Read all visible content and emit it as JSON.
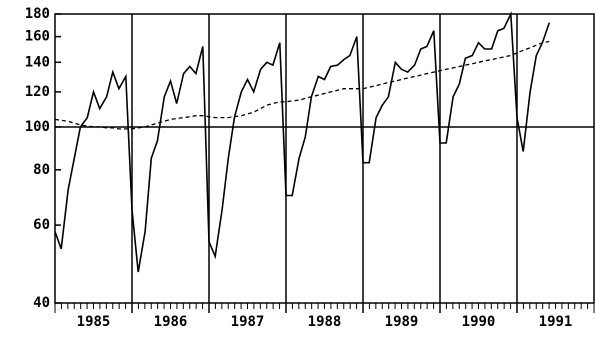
{
  "chart_data": {
    "type": "line",
    "log_scale": true,
    "x": [
      1985.0,
      1985.08,
      1985.17,
      1985.25,
      1985.33,
      1985.42,
      1985.5,
      1985.58,
      1985.67,
      1985.75,
      1985.83,
      1985.92,
      1986.0,
      1986.08,
      1986.17,
      1986.25,
      1986.33,
      1986.42,
      1986.5,
      1986.58,
      1986.67,
      1986.75,
      1986.83,
      1986.92,
      1987.0,
      1987.08,
      1987.17,
      1987.25,
      1987.33,
      1987.42,
      1987.5,
      1987.58,
      1987.67,
      1987.75,
      1987.83,
      1987.92,
      1988.0,
      1988.08,
      1988.17,
      1988.25,
      1988.33,
      1988.42,
      1988.5,
      1988.58,
      1988.67,
      1988.75,
      1988.83,
      1988.92,
      1989.0,
      1989.08,
      1989.17,
      1989.25,
      1989.33,
      1989.42,
      1989.5,
      1989.58,
      1989.67,
      1989.75,
      1989.83,
      1989.92,
      1990.0,
      1990.08,
      1990.17,
      1990.25,
      1990.33,
      1990.42,
      1990.5,
      1990.58,
      1990.67,
      1990.75,
      1990.83,
      1990.92,
      1991.0,
      1991.08,
      1991.17,
      1991.25,
      1991.33,
      1991.42
    ],
    "series": [
      {
        "color": "#000000",
        "dash": false,
        "values": [
          58,
          53,
          72,
          85,
          100,
          105,
          120,
          110,
          117,
          133,
          122,
          130,
          65,
          47,
          58,
          85,
          93,
          117,
          127,
          113,
          132,
          137,
          132,
          152,
          55,
          51,
          65,
          85,
          105,
          120,
          128,
          120,
          135,
          140,
          138,
          155,
          70,
          70,
          85,
          95,
          117,
          130,
          128,
          137,
          138,
          142,
          145,
          160,
          83,
          83,
          105,
          112,
          117,
          140,
          135,
          133,
          138,
          150,
          152,
          165,
          92,
          92,
          117,
          125,
          143,
          145,
          155,
          150,
          150,
          165,
          167,
          180,
          105,
          88,
          120,
          145,
          155,
          172
        ]
      },
      {
        "color": "#000000",
        "dash": true,
        "values": [
          104,
          103.5,
          103,
          102,
          101,
          100.5,
          100,
          100,
          99.5,
          99.5,
          99,
          99,
          99,
          99.5,
          100,
          101,
          102,
          103,
          104,
          104.5,
          105,
          105.5,
          106,
          106,
          105.5,
          105,
          105,
          105,
          105.5,
          106,
          107,
          108,
          110,
          112,
          113,
          114,
          114,
          114.5,
          115,
          116,
          117,
          118,
          119,
          120,
          121,
          122,
          122,
          122,
          122,
          123,
          124,
          125,
          126,
          127,
          128,
          129,
          130,
          131,
          132,
          133,
          134,
          135,
          136,
          137,
          138,
          139,
          140,
          141,
          142,
          143,
          144,
          145,
          147,
          149,
          151,
          153,
          155,
          156
        ]
      }
    ],
    "xlim": [
      1985,
      1992
    ],
    "xticks": [
      {
        "value": 1985.5,
        "label": "1985"
      },
      {
        "value": 1986.5,
        "label": "1986"
      },
      {
        "value": 1987.5,
        "label": "1987"
      },
      {
        "value": 1988.5,
        "label": "1988"
      },
      {
        "value": 1989.5,
        "label": "1989"
      },
      {
        "value": 1990.5,
        "label": "1990"
      },
      {
        "value": 1991.5,
        "label": "1991"
      }
    ],
    "ylim": [
      40,
      180
    ],
    "yticks": [
      40,
      60,
      80,
      100,
      120,
      140,
      160,
      180
    ],
    "hlines": [
      100
    ],
    "vlines": [
      1986,
      1987,
      1988,
      1989,
      1990,
      1991
    ]
  }
}
